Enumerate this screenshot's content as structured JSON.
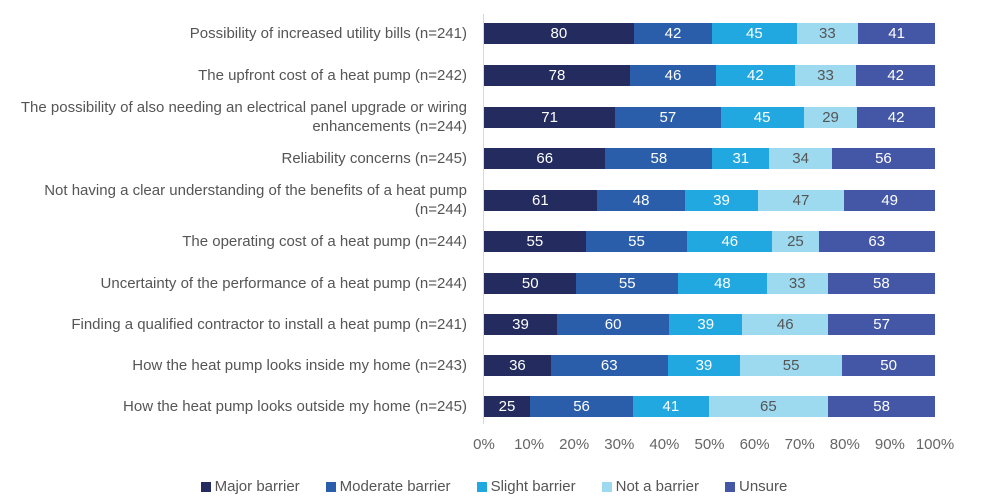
{
  "chart_data": {
    "type": "bar",
    "orientation": "horizontal",
    "stacked": "percent",
    "title": "",
    "xlabel": "",
    "ylabel": "",
    "xlim": [
      0,
      100
    ],
    "x_ticks": [
      "0%",
      "10%",
      "20%",
      "30%",
      "40%",
      "50%",
      "60%",
      "70%",
      "80%",
      "90%",
      "100%"
    ],
    "grid": false,
    "legend_position": "bottom",
    "categories": [
      "Possibility of increased utility bills (n=241)",
      "The upfront cost of a heat pump (n=242)",
      "The possibility of also needing an electrical panel upgrade or wiring enhancements (n=244)",
      "Reliability concerns (n=245)",
      "Not having a clear understanding of the benefits of a heat pump (n=244)",
      "The operating cost of a heat pump (n=244)",
      "Uncertainty of the performance of a heat pump (n=244)",
      "Finding a qualified contractor to install a heat pump (n=241)",
      "How the heat pump looks inside my home (n=243)",
      "How the heat pump looks outside my home (n=245)"
    ],
    "series": [
      {
        "name": "Major barrier",
        "color": "#232B5F",
        "label_color": "#ffffff",
        "values": [
          80,
          78,
          71,
          66,
          61,
          55,
          50,
          39,
          36,
          25
        ]
      },
      {
        "name": "Moderate barrier",
        "color": "#2A5EAB",
        "label_color": "#ffffff",
        "values": [
          42,
          46,
          57,
          58,
          48,
          55,
          55,
          60,
          63,
          56
        ]
      },
      {
        "name": "Slight barrier",
        "color": "#21A8E0",
        "label_color": "#ffffff",
        "values": [
          45,
          42,
          45,
          31,
          39,
          46,
          48,
          39,
          39,
          41
        ]
      },
      {
        "name": "Not a barrier",
        "color": "#9DD9EF",
        "label_color": "#555555",
        "values": [
          33,
          33,
          29,
          34,
          47,
          25,
          33,
          46,
          55,
          65
        ]
      },
      {
        "name": "Unsure",
        "color": "#4457A6",
        "label_color": "#ffffff",
        "values": [
          41,
          42,
          42,
          56,
          49,
          63,
          58,
          57,
          50,
          58
        ]
      }
    ]
  }
}
